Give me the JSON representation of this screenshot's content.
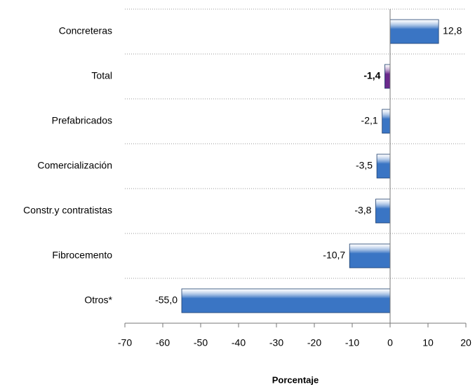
{
  "chart_data": {
    "type": "hbar",
    "categories": [
      "Concreteras",
      "Total",
      "Prefabricados",
      "Comercialización",
      "Constr.y contratistas",
      "Fibrocemento",
      "Otros*"
    ],
    "values": [
      12.8,
      -1.4,
      -2.1,
      -3.5,
      -3.8,
      -10.7,
      -55.0
    ],
    "value_labels": [
      "12,8",
      "-1,4",
      "-2,1",
      "-3,5",
      "-3,8",
      "-10,7",
      "-55,0"
    ],
    "colors": [
      "#3a75c4",
      "#6a2a8c",
      "#3a75c4",
      "#3a75c4",
      "#3a75c4",
      "#3a75c4",
      "#3a75c4"
    ],
    "bold_labels": [
      false,
      true,
      false,
      false,
      false,
      false,
      false
    ],
    "xlabel": "Porcentaje",
    "xlim": [
      -70,
      20
    ],
    "xticks": [
      -70,
      -60,
      -50,
      -40,
      -30,
      -20,
      -10,
      0,
      10,
      20
    ],
    "grid": true
  }
}
